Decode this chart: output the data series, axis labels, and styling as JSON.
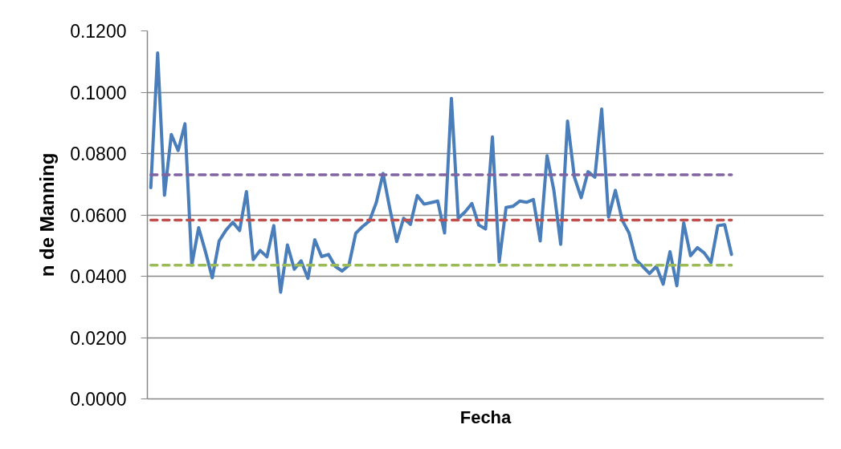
{
  "chart_data": {
    "type": "line",
    "xlabel": "Fecha",
    "ylabel": "n de Manning",
    "categories": [
      null,
      null,
      null,
      null,
      null,
      null,
      null,
      null,
      null,
      null,
      null,
      null,
      null,
      null,
      null,
      null,
      null,
      null,
      null,
      null,
      null,
      null,
      null,
      null,
      null,
      null,
      null,
      null,
      null,
      null,
      null,
      null,
      null,
      null,
      null,
      null,
      null,
      null,
      null,
      null,
      null,
      null,
      null,
      null,
      null,
      null,
      null,
      null,
      null,
      null,
      null,
      null,
      null,
      null,
      null,
      null,
      null,
      null,
      null,
      null,
      null,
      null,
      null,
      null,
      null,
      null,
      null,
      null,
      null,
      null,
      null,
      null,
      null,
      null,
      null,
      null,
      null,
      null,
      null,
      null,
      null,
      null,
      null,
      null,
      null,
      null,
      null,
      null,
      null,
      null,
      null,
      null,
      null,
      null,
      null,
      null,
      null,
      null,
      null
    ],
    "series": [
      {
        "color": "#4a7ebb",
        "values": [
          0.0689,
          0.1128,
          0.0664,
          0.0862,
          0.081,
          0.0897,
          0.0436,
          0.0558,
          0.048,
          0.0395,
          0.0515,
          0.055,
          0.0576,
          0.0549,
          0.0676,
          0.0454,
          0.0484,
          0.0463,
          0.0565,
          0.0348,
          0.0502,
          0.0423,
          0.045,
          0.0393,
          0.0519,
          0.0464,
          0.0471,
          0.0432,
          0.0417,
          0.0436,
          0.054,
          0.0562,
          0.058,
          0.064,
          0.0735,
          0.0619,
          0.0513,
          0.0589,
          0.0569,
          0.0663,
          0.0635,
          0.064,
          0.0645,
          0.0541,
          0.098,
          0.0589,
          0.061,
          0.0637,
          0.0567,
          0.0554,
          0.0854,
          0.0447,
          0.0624,
          0.0628,
          0.0645,
          0.0641,
          0.065,
          0.0515,
          0.0793,
          0.068,
          0.0504,
          0.0906,
          0.0723,
          0.0656,
          0.0741,
          0.0723,
          0.0945,
          0.0593,
          0.068,
          0.0583,
          0.0541,
          0.0454,
          0.0432,
          0.0409,
          0.0432,
          0.0374,
          0.048,
          0.0369,
          0.0574,
          0.0467,
          0.0493,
          0.0476,
          0.0445,
          0.0565,
          0.0568,
          0.0471,
          null,
          null,
          null,
          null,
          null,
          null,
          null,
          null,
          null,
          null,
          null,
          null,
          null
        ]
      },
      {
        "color": "#8064a2",
        "line_style": "dashed",
        "values": [
          0.0731,
          0.0731,
          0.0731,
          0.0731,
          0.0731,
          0.0731,
          0.0731,
          0.0731,
          0.0731,
          0.0731,
          0.0731,
          0.0731,
          0.0731,
          0.0731,
          0.0731,
          0.0731,
          0.0731,
          0.0731,
          0.0731,
          0.0731,
          0.0731,
          0.0731,
          0.0731,
          0.0731,
          0.0731,
          0.0731,
          0.0731,
          0.0731,
          0.0731,
          0.0731,
          0.0731,
          0.0731,
          0.0731,
          0.0731,
          0.0731,
          0.0731,
          0.0731,
          0.0731,
          0.0731,
          0.0731,
          0.0731,
          0.0731,
          0.0731,
          0.0731,
          0.0731,
          0.0731,
          0.0731,
          0.0731,
          0.0731,
          0.0731,
          0.0731,
          0.0731,
          0.0731,
          0.0731,
          0.0731,
          0.0731,
          0.0731,
          0.0731,
          0.0731,
          0.0731,
          0.0731,
          0.0731,
          0.0731,
          0.0731,
          0.0731,
          0.0731,
          0.0731,
          0.0731,
          0.0731,
          0.0731,
          0.0731,
          0.0731,
          0.0731,
          0.0731,
          0.0731,
          0.0731,
          0.0731,
          0.0731,
          0.0731,
          0.0731,
          0.0731,
          0.0731,
          0.0731,
          0.0731,
          0.0731,
          0.0731,
          null,
          null,
          null,
          null,
          null,
          null,
          null,
          null,
          null,
          null,
          null,
          null,
          null
        ]
      },
      {
        "color": "#c0504d",
        "line_style": "dashed",
        "values": [
          0.0583,
          0.0583,
          0.0583,
          0.0583,
          0.0583,
          0.0583,
          0.0583,
          0.0583,
          0.0583,
          0.0583,
          0.0583,
          0.0583,
          0.0583,
          0.0583,
          0.0583,
          0.0583,
          0.0583,
          0.0583,
          0.0583,
          0.0583,
          0.0583,
          0.0583,
          0.0583,
          0.0583,
          0.0583,
          0.0583,
          0.0583,
          0.0583,
          0.0583,
          0.0583,
          0.0583,
          0.0583,
          0.0583,
          0.0583,
          0.0583,
          0.0583,
          0.0583,
          0.0583,
          0.0583,
          0.0583,
          0.0583,
          0.0583,
          0.0583,
          0.0583,
          0.0583,
          0.0583,
          0.0583,
          0.0583,
          0.0583,
          0.0583,
          0.0583,
          0.0583,
          0.0583,
          0.0583,
          0.0583,
          0.0583,
          0.0583,
          0.0583,
          0.0583,
          0.0583,
          0.0583,
          0.0583,
          0.0583,
          0.0583,
          0.0583,
          0.0583,
          0.0583,
          0.0583,
          0.0583,
          0.0583,
          0.0583,
          0.0583,
          0.0583,
          0.0583,
          0.0583,
          0.0583,
          0.0583,
          0.0583,
          0.0583,
          0.0583,
          0.0583,
          0.0583,
          0.0583,
          0.0583,
          0.0583,
          0.0583,
          null,
          null,
          null,
          null,
          null,
          null,
          null,
          null,
          null,
          null,
          null,
          null,
          null
        ]
      },
      {
        "color": "#9bbb59",
        "line_style": "dashed",
        "values": [
          0.0436,
          0.0436,
          0.0436,
          0.0436,
          0.0436,
          0.0436,
          0.0436,
          0.0436,
          0.0436,
          0.0436,
          0.0436,
          0.0436,
          0.0436,
          0.0436,
          0.0436,
          0.0436,
          0.0436,
          0.0436,
          0.0436,
          0.0436,
          0.0436,
          0.0436,
          0.0436,
          0.0436,
          0.0436,
          0.0436,
          0.0436,
          0.0436,
          0.0436,
          0.0436,
          0.0436,
          0.0436,
          0.0436,
          0.0436,
          0.0436,
          0.0436,
          0.0436,
          0.0436,
          0.0436,
          0.0436,
          0.0436,
          0.0436,
          0.0436,
          0.0436,
          0.0436,
          0.0436,
          0.0436,
          0.0436,
          0.0436,
          0.0436,
          0.0436,
          0.0436,
          0.0436,
          0.0436,
          0.0436,
          0.0436,
          0.0436,
          0.0436,
          0.0436,
          0.0436,
          0.0436,
          0.0436,
          0.0436,
          0.0436,
          0.0436,
          0.0436,
          0.0436,
          0.0436,
          0.0436,
          0.0436,
          0.0436,
          0.0436,
          0.0436,
          0.0436,
          0.0436,
          0.0436,
          0.0436,
          0.0436,
          0.0436,
          0.0436,
          0.0436,
          0.0436,
          0.0436,
          0.0436,
          0.0436,
          0.0436,
          null,
          null,
          null,
          null,
          null,
          null,
          null,
          null,
          null,
          null,
          null,
          null,
          null
        ]
      }
    ],
    "ylim": [
      0,
      0.12
    ],
    "yticks": [
      {
        "value": 0,
        "label": "0.0000"
      },
      {
        "value": 0.02,
        "label": "0.0200"
      },
      {
        "value": 0.04,
        "label": "0.0400"
      },
      {
        "value": 0.06,
        "label": "0.0600"
      },
      {
        "value": 0.08,
        "label": "0.0800"
      },
      {
        "value": 0.1,
        "label": "0.1000"
      },
      {
        "value": 0.12,
        "label": "0.1200"
      }
    ],
    "grid": "y"
  }
}
